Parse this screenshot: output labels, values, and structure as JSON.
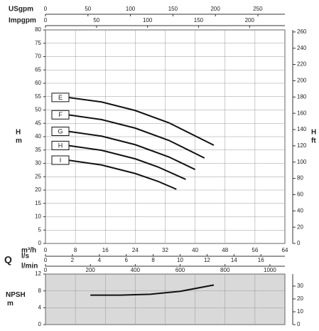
{
  "chart_data": [
    {
      "type": "line",
      "ylabel": "H",
      "yunit": "m",
      "y2label": "H",
      "y2unit": "ft",
      "xlabel": "m³/h",
      "flow_label": "Q",
      "xlim": [
        0,
        64
      ],
      "xticks": [
        0,
        8,
        16,
        24,
        32,
        40,
        48,
        56,
        64
      ],
      "ylim": [
        0,
        80
      ],
      "yticks": [
        0,
        5,
        10,
        15,
        20,
        25,
        30,
        35,
        40,
        45,
        50,
        55,
        60,
        65,
        70,
        75,
        80
      ],
      "y2lim": [
        0,
        262.5
      ],
      "y2ticks": [
        0,
        20,
        40,
        60,
        80,
        100,
        120,
        140,
        160,
        180,
        200,
        220,
        240,
        260
      ],
      "grid": true,
      "flow_axes": [
        {
          "label": "USgpm",
          "position": "top",
          "lim": [
            0,
            281.8
          ],
          "ticks": [
            0,
            50,
            100,
            150,
            200,
            250
          ]
        },
        {
          "label": "Impgpm",
          "position": "top",
          "lim": [
            0,
            234.6
          ],
          "ticks": [
            0,
            50,
            100,
            150,
            200
          ]
        },
        {
          "label": "l/s",
          "position": "bottom",
          "lim": [
            0,
            17.78
          ],
          "ticks": [
            0,
            2,
            4,
            6,
            8,
            10,
            12,
            14,
            16
          ]
        },
        {
          "label": "l/min",
          "position": "bottom",
          "lim": [
            0,
            1066.7
          ],
          "ticks": [
            0,
            200,
            400,
            600,
            800,
            1000
          ]
        }
      ],
      "series": [
        {
          "name": "E",
          "color": "#111111",
          "x": [
            6,
            15,
            24,
            33,
            45
          ],
          "values": [
            54.7,
            53.0,
            49.8,
            45.2,
            36.8
          ]
        },
        {
          "name": "F",
          "color": "#111111",
          "x": [
            6,
            15,
            24,
            33,
            42.5
          ],
          "values": [
            48.2,
            46.4,
            43.2,
            38.6,
            32
          ]
        },
        {
          "name": "G",
          "color": "#111111",
          "x": [
            6,
            15,
            24,
            33,
            40
          ],
          "values": [
            42.0,
            40.2,
            37.0,
            32.4,
            27.7
          ]
        },
        {
          "name": "H",
          "color": "#111111",
          "x": [
            6,
            15,
            24,
            30,
            37.5
          ],
          "values": [
            36.7,
            34.9,
            31.7,
            28.7,
            24
          ]
        },
        {
          "name": "I",
          "color": "#111111",
          "x": [
            6,
            15,
            24,
            30,
            35
          ],
          "values": [
            31.2,
            29.4,
            26.2,
            23.3,
            20.3
          ]
        }
      ]
    },
    {
      "type": "line",
      "ylabel": "NPSH",
      "yunit": "m",
      "xlim": [
        0,
        64
      ],
      "ylim": [
        0,
        12
      ],
      "yticks": [
        0,
        4,
        8,
        12
      ],
      "y2lim": [
        0,
        39.4
      ],
      "y2ticks": [
        0,
        10,
        20,
        30
      ],
      "grid": true,
      "background": "#d9d9d9",
      "series": [
        {
          "color": "#111111",
          "x": [
            12,
            20,
            28,
            36,
            45
          ],
          "values": [
            7.0,
            7.0,
            7.2,
            7.9,
            9.4
          ]
        }
      ]
    }
  ]
}
